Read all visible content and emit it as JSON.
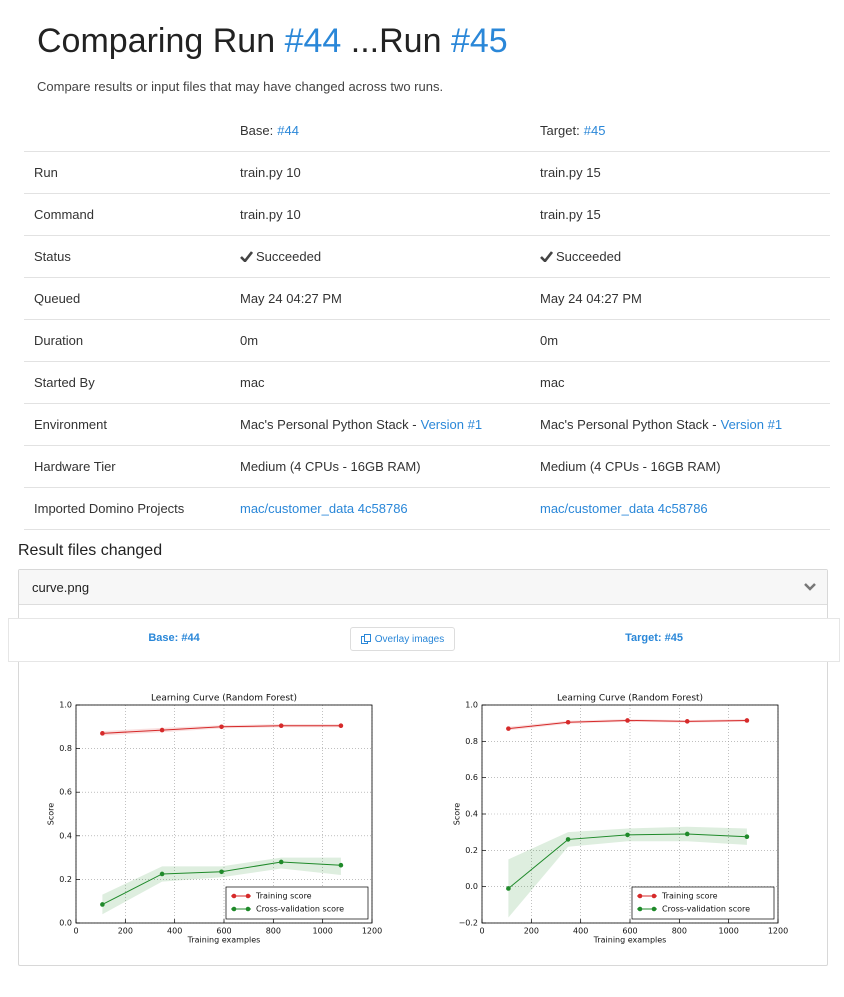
{
  "header": {
    "title": "Comparing Run",
    "base_link": "#44",
    "middle": "...Run",
    "target_link": "#45",
    "subtitle": "Compare results or input files that may have changed across two runs."
  },
  "table": {
    "base_label": "Base:",
    "base_link": "#44",
    "target_label": "Target:",
    "target_link": "#45",
    "rows": [
      {
        "label": "Run",
        "base": {
          "text": "train.py 10"
        },
        "target": {
          "text": "train.py 15"
        }
      },
      {
        "label": "Command",
        "base": {
          "text": "train.py 10"
        },
        "target": {
          "text": "train.py 15"
        }
      },
      {
        "label": "Status",
        "base": {
          "text": "Succeeded",
          "check": true
        },
        "target": {
          "text": "Succeeded",
          "check": true
        }
      },
      {
        "label": "Queued",
        "base": {
          "text": "May 24 04:27 PM"
        },
        "target": {
          "text": "May 24 04:27 PM"
        }
      },
      {
        "label": "Duration",
        "base": {
          "text": "0m"
        },
        "target": {
          "text": "0m"
        }
      },
      {
        "label": "Started By",
        "base": {
          "text": "mac"
        },
        "target": {
          "text": "mac"
        }
      },
      {
        "label": "Environment",
        "base": {
          "text": "Mac's Personal Python Stack -",
          "link": "Version #1"
        },
        "target": {
          "text": "Mac's Personal Python Stack -",
          "link": "Version #1"
        }
      },
      {
        "label": "Hardware Tier",
        "base": {
          "text": "Medium (4 CPUs - 16GB RAM)"
        },
        "target": {
          "text": "Medium (4 CPUs - 16GB RAM)"
        }
      },
      {
        "label": "Imported Domino Projects",
        "base": {
          "link": "mac/customer_data 4c58786"
        },
        "target": {
          "link": "mac/customer_data 4c58786"
        }
      }
    ]
  },
  "result_files": {
    "heading": "Result files changed",
    "file": "curve.png",
    "base_tab": "Base: #44",
    "overlay_button": "Overlay images",
    "target_tab": "Target: #45"
  },
  "chart_data": [
    {
      "type": "line",
      "title": "Learning Curve (Random Forest)",
      "x_label": "Training examples",
      "y_label": "Score",
      "x": [
        107,
        349,
        590,
        832,
        1074
      ],
      "series": [
        {
          "name": "Training score",
          "color": "#d62a2a",
          "values": [
            0.87,
            0.885,
            0.9,
            0.905,
            0.905
          ],
          "lower": [
            0.86,
            0.875,
            0.893,
            0.898,
            0.898
          ],
          "upper": [
            0.88,
            0.895,
            0.907,
            0.912,
            0.912
          ]
        },
        {
          "name": "Cross-validation score",
          "color": "#1f8a2a",
          "values": [
            0.085,
            0.225,
            0.235,
            0.28,
            0.265
          ],
          "lower": [
            0.04,
            0.19,
            0.21,
            0.25,
            0.22
          ],
          "upper": [
            0.13,
            0.26,
            0.26,
            0.3,
            0.3
          ]
        }
      ],
      "xlim": [
        0,
        1200
      ],
      "xticks": [
        0,
        200,
        400,
        600,
        800,
        1000,
        1200
      ],
      "ylim": [
        0,
        1
      ],
      "yticks": [
        {
          "value": 0,
          "label": "0.0"
        },
        0.2,
        0.4,
        0.6,
        0.8,
        {
          "value": 1,
          "label": "1.0"
        }
      ],
      "grid": true,
      "legend": "lower right"
    },
    {
      "type": "line",
      "title": "Learning Curve (Random Forest)",
      "x_label": "Training examples",
      "y_label": "Score",
      "x": [
        107,
        349,
        590,
        832,
        1074
      ],
      "series": [
        {
          "name": "Training score",
          "color": "#d62a2a",
          "values": [
            0.87,
            0.905,
            0.915,
            0.91,
            0.915
          ],
          "lower": [
            0.86,
            0.897,
            0.908,
            0.903,
            0.908
          ],
          "upper": [
            0.88,
            0.913,
            0.922,
            0.917,
            0.922
          ]
        },
        {
          "name": "Cross-validation score",
          "color": "#1f8a2a",
          "values": [
            -0.01,
            0.26,
            0.285,
            0.29,
            0.275
          ],
          "lower": [
            -0.17,
            0.22,
            0.25,
            0.25,
            0.23
          ],
          "upper": [
            0.15,
            0.3,
            0.32,
            0.33,
            0.32
          ]
        }
      ],
      "xlim": [
        0,
        1200
      ],
      "xticks": [
        0,
        200,
        400,
        600,
        800,
        1000,
        1200
      ],
      "ylim": [
        -0.2,
        1
      ],
      "yticks": [
        {
          "value": -0.2,
          "label": "−0.2"
        },
        {
          "value": 0,
          "label": "0.0"
        },
        0.2,
        0.4,
        0.6,
        0.8,
        {
          "value": 1,
          "label": "1.0"
        }
      ],
      "grid": true,
      "legend": "lower right"
    }
  ]
}
